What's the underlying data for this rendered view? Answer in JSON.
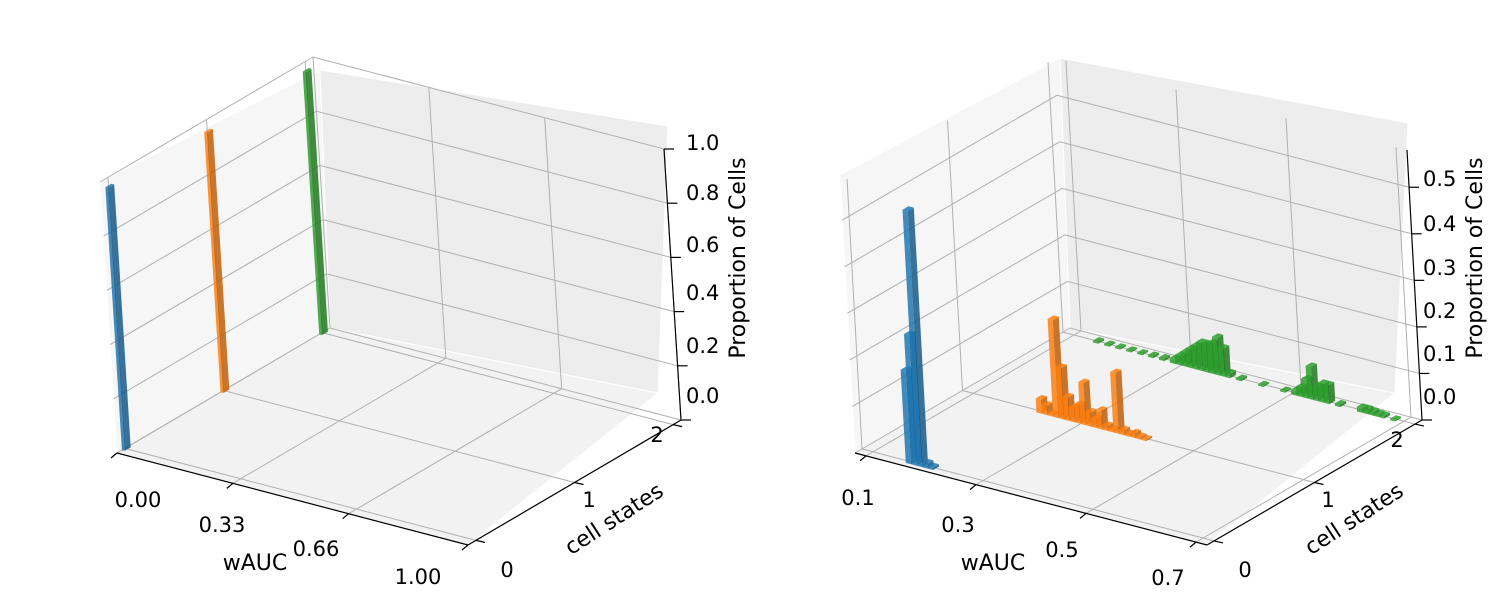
{
  "chart_data": [
    {
      "type": "bar3d",
      "title": "",
      "xlabel": "wAUC",
      "ylabel": "cell states",
      "zlabel": "Proportion of Cells",
      "xlim": [
        0.0,
        1.0
      ],
      "ylim": [
        0,
        2
      ],
      "zlim": [
        0.0,
        1.0
      ],
      "xticks": [
        0.0,
        0.33,
        0.66,
        1.0
      ],
      "xtick_labels": [
        "0.00",
        "0.33",
        "0.66",
        "1.00"
      ],
      "yticks": [
        0,
        1,
        2
      ],
      "ytick_labels": [
        "0",
        "1",
        "2"
      ],
      "zticks": [
        0.0,
        0.2,
        0.4,
        0.6,
        0.8,
        1.0
      ],
      "ztick_labels": [
        "0.0",
        "0.2",
        "0.4",
        "0.6",
        "0.8",
        "1.0"
      ],
      "grid": true,
      "bar_width": 0.008,
      "series": [
        {
          "state": 0,
          "color": "#1f77b4",
          "x": [
            0.0
          ],
          "values": [
            1.0
          ]
        },
        {
          "state": 1,
          "color": "#ff7f0e",
          "x": [
            0.0
          ],
          "values": [
            1.0
          ]
        },
        {
          "state": 2,
          "color": "#2ca02c",
          "x": [
            0.0
          ],
          "values": [
            1.0
          ]
        }
      ]
    },
    {
      "type": "bar3d",
      "title": "",
      "xlabel": "wAUC",
      "ylabel": "cell states",
      "zlabel": "Proportion of Cells",
      "xlim": [
        0.08,
        0.72
      ],
      "ylim": [
        0,
        2
      ],
      "zlim": [
        0.0,
        0.58
      ],
      "xticks": [
        0.1,
        0.3,
        0.5,
        0.7
      ],
      "xtick_labels": [
        "0.1",
        "0.3",
        "0.5",
        "0.7"
      ],
      "yticks": [
        0,
        1,
        2
      ],
      "ytick_labels": [
        "0",
        "1",
        "2"
      ],
      "zticks": [
        0.0,
        0.1,
        0.2,
        0.3,
        0.4,
        0.5
      ],
      "ztick_labels": [
        "0.0",
        "0.1",
        "0.2",
        "0.3",
        "0.4",
        "0.5"
      ],
      "grid": true,
      "bar_width": 0.0095,
      "series": [
        {
          "state": 0,
          "color": "#1f77b4",
          "x": [
            0.165,
            0.175,
            0.185,
            0.195,
            0.205
          ],
          "values": [
            0.2,
            0.28,
            0.55,
            0.01,
            0.005
          ]
        },
        {
          "state": 1,
          "color": "#ff7f0e",
          "x": [
            0.22,
            0.23,
            0.24,
            0.25,
            0.26,
            0.27,
            0.28,
            0.29,
            0.3,
            0.31,
            0.32,
            0.33,
            0.34,
            0.35,
            0.36,
            0.37,
            0.38,
            0.39,
            0.4,
            0.41
          ],
          "values": [
            0.03,
            0.02,
            0.005,
            0.21,
            0.11,
            0.05,
            0.03,
            0.04,
            0.09,
            0.03,
            0.02,
            0.04,
            0.01,
            0.005,
            0.13,
            0.01,
            0.005,
            0.01,
            0.005,
            0.003
          ]
        },
        {
          "state": 2,
          "color": "#2ca02c",
          "x": [
            0.14,
            0.16,
            0.18,
            0.2,
            0.22,
            0.24,
            0.26,
            0.28,
            0.29,
            0.3,
            0.31,
            0.32,
            0.33,
            0.34,
            0.35,
            0.36,
            0.37,
            0.38,
            0.4,
            0.44,
            0.48,
            0.5,
            0.51,
            0.52,
            0.53,
            0.54,
            0.55,
            0.56,
            0.58,
            0.62,
            0.63,
            0.64,
            0.65,
            0.66,
            0.68
          ],
          "values": [
            0.004,
            0.003,
            0.003,
            0.003,
            0.003,
            0.004,
            0.005,
            0.01,
            0.02,
            0.03,
            0.04,
            0.05,
            0.06,
            0.06,
            0.065,
            0.08,
            0.06,
            0.01,
            0.004,
            0.003,
            0.003,
            0.01,
            0.02,
            0.04,
            0.07,
            0.03,
            0.04,
            0.04,
            0.005,
            0.01,
            0.01,
            0.008,
            0.006,
            0.005,
            0.003
          ]
        }
      ]
    }
  ]
}
